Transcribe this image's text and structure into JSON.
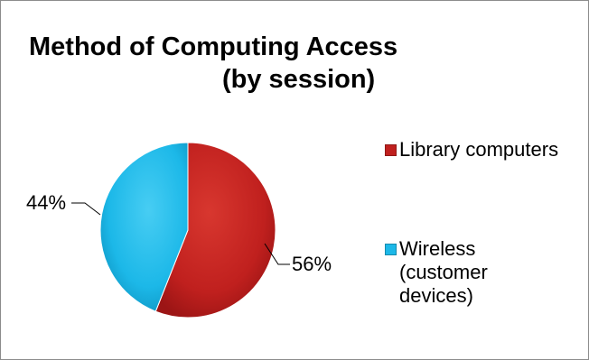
{
  "chart_data": {
    "type": "pie",
    "title": "Method of Computing Access",
    "subtitle": "(by session)",
    "categories": [
      "Library computers",
      "Wireless (customer devices)"
    ],
    "values": [
      56,
      44
    ],
    "data_labels": [
      "56%",
      "44%"
    ],
    "colors": [
      "#c0201e",
      "#1cb8e8"
    ],
    "legend_position": "right",
    "legend": [
      {
        "label": "Library computers",
        "color": "#c0201e"
      },
      {
        "label": "Wireless (customer devices)",
        "color": "#1cb8e8"
      }
    ]
  }
}
